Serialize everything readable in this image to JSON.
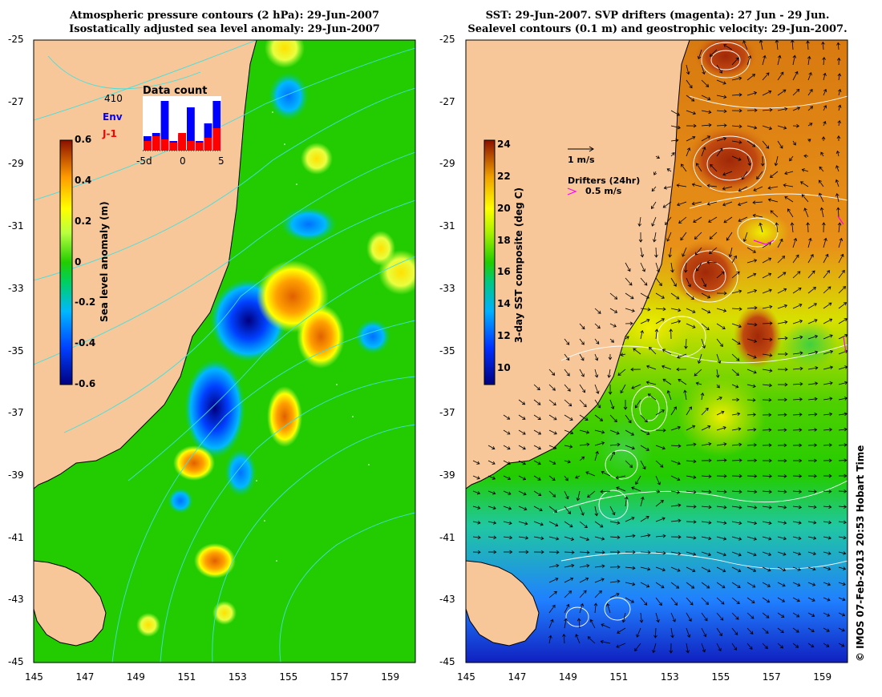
{
  "left_panel": {
    "title_line1": "Atmospheric pressure contours (2 hPa): 29-Jun-2007",
    "title_line2": "Isostatically adjusted sea level anomaly: 29-Jun-2007",
    "colorbar": {
      "label": "Sea level anomaly (m)",
      "ticks": [
        "0.6",
        "0.4",
        "0.2",
        "0",
        "-0.2",
        "-0.4",
        "-0.6"
      ],
      "range": [
        -0.6,
        0.6
      ]
    },
    "inset": {
      "title": "Data count",
      "count": "410",
      "series": [
        {
          "name": "Env",
          "color": "#0000ff"
        },
        {
          "name": "J-1",
          "color": "#ff0000"
        }
      ],
      "x_ticks": [
        "-5d",
        "0",
        "5"
      ]
    }
  },
  "right_panel": {
    "title_line1": "SST: 29-Jun-2007. SVP drifters (magenta): 27 Jun - 29 Jun.",
    "title_line2": "Sealevel contours (0.1 m) and geostrophic velocity: 29-Jun-2007.",
    "colorbar": {
      "label": "3-day SST composite (deg C)",
      "ticks": [
        "24",
        "22",
        "20",
        "18",
        "16",
        "14",
        "12",
        "10"
      ],
      "range": [
        9,
        24
      ]
    },
    "velocity_key": "1 m/s",
    "drifter_key_title": "Drifters (24hr)",
    "drifter_key_value": "0.5 m/s",
    "drifter_color": "#ff00ff"
  },
  "axes": {
    "lon_ticks": [
      "145",
      "147",
      "149",
      "151",
      "153",
      "155",
      "157",
      "159"
    ],
    "lat_ticks": [
      "-25",
      "-27",
      "-29",
      "-31",
      "-33",
      "-35",
      "-37",
      "-39",
      "-41",
      "-43",
      "-45"
    ],
    "lon_range": [
      145,
      160
    ],
    "lat_range": [
      -45,
      -25
    ]
  },
  "credit": "© IMOS 07-Feb-2013 20:53 Hobart Time",
  "colors": {
    "land": "#f7c79a",
    "coast": "#000000",
    "pressure_contour": "#40e0e0",
    "sealevel_contour": "#ffffff"
  }
}
